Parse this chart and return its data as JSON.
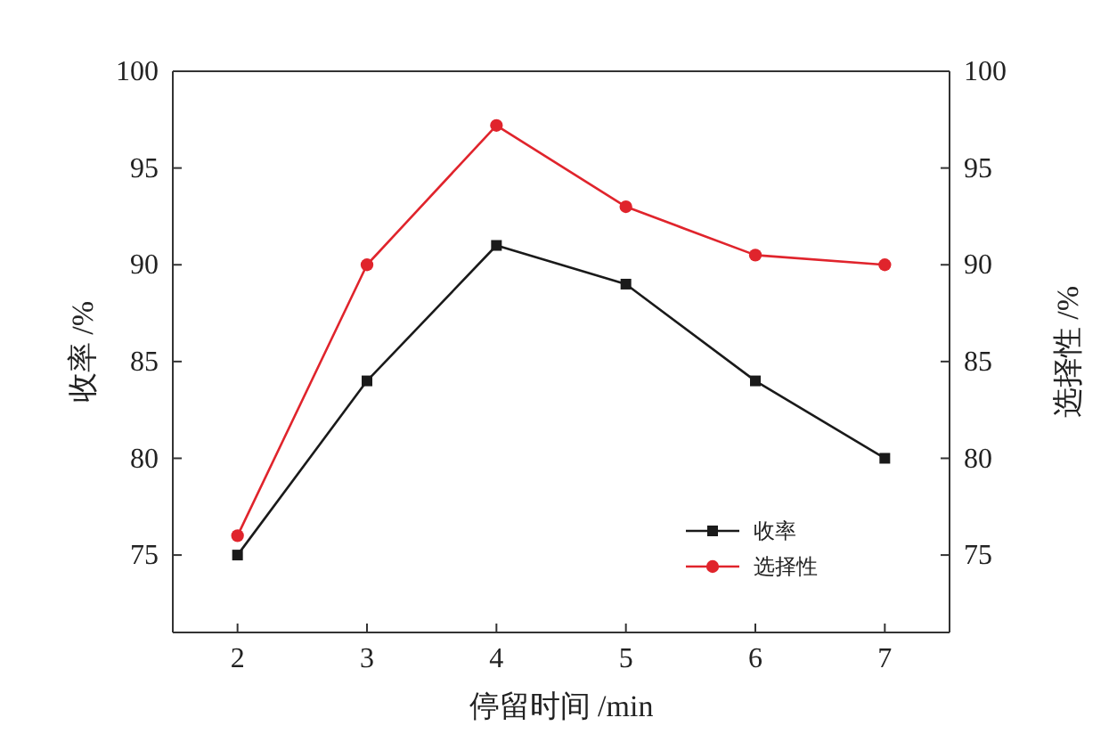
{
  "chart_data": {
    "type": "line",
    "xlabel": "停留时间 /min",
    "ylabel": "收率 /%",
    "y2label": "选择性 /%",
    "x": [
      2,
      3,
      4,
      5,
      6,
      7
    ],
    "series": [
      {
        "name": "收率",
        "color": "#1a1a1a",
        "marker": "square",
        "values": [
          75,
          84,
          91,
          89,
          84,
          80
        ]
      },
      {
        "name": "选择性",
        "color": "#e0242c",
        "marker": "circle",
        "values": [
          76,
          90,
          97.2,
          93,
          90.5,
          90
        ]
      }
    ],
    "xlim": [
      1.5,
      7.5
    ],
    "xticks": [
      2,
      3,
      4,
      5,
      6,
      7
    ],
    "ylim": [
      71,
      100
    ],
    "yticks": [
      75,
      80,
      85,
      90,
      95,
      100
    ],
    "y2lim": [
      71,
      100
    ],
    "y2ticks": [
      75,
      80,
      85,
      90,
      95,
      100
    ],
    "legend": "bottom right",
    "grid": false,
    "line_style": "solid"
  }
}
